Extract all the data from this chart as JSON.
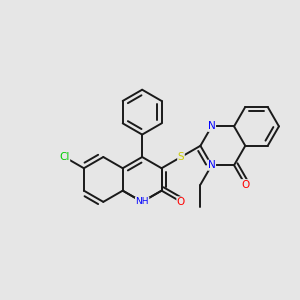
{
  "background_color": "#e6e6e6",
  "bond_color": "#1a1a1a",
  "atom_colors": {
    "N": "#0000ff",
    "O": "#ff0000",
    "S": "#cccc00",
    "Cl": "#00cc00",
    "C": "#1a1a1a",
    "H": "#1a1a1a"
  },
  "font_size": 7.5,
  "font_size_small": 6.5
}
